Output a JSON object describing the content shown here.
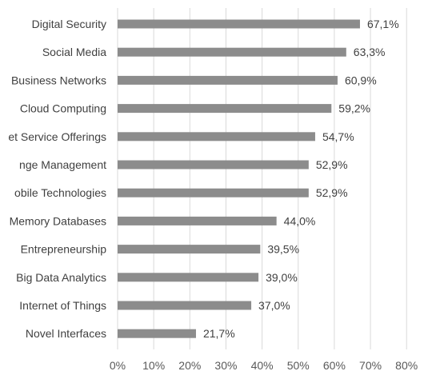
{
  "chart_data": {
    "type": "bar",
    "orientation": "horizontal",
    "categories": [
      "Digital Security",
      "Social Media",
      "Business Networks",
      "Cloud Computing",
      "et Service Offerings",
      "nge Management",
      "obile Technologies",
      "Memory Databases",
      "Entrepreneurship",
      "Big Data Analytics",
      "Internet of Things",
      "Novel Interfaces"
    ],
    "values": [
      67.1,
      63.3,
      60.9,
      59.2,
      54.7,
      52.9,
      52.9,
      44.0,
      39.5,
      39.0,
      37.0,
      21.7
    ],
    "value_labels": [
      "67,1%",
      "63,3%",
      "60,9%",
      "59,2%",
      "54,7%",
      "52,9%",
      "52,9%",
      "44,0%",
      "39,5%",
      "39,0%",
      "37,0%",
      "21,7%"
    ],
    "xlim": [
      0,
      80
    ],
    "xticks": [
      0,
      10,
      20,
      30,
      40,
      50,
      60,
      70,
      80
    ],
    "xtick_labels": [
      "0%",
      "10%",
      "20%",
      "30%",
      "40%",
      "50%",
      "60%",
      "70%",
      "80%"
    ],
    "grid": true,
    "legend": false,
    "title": "",
    "xlabel": "",
    "ylabel": "",
    "colors": {
      "bar": "#8c8c8c",
      "grid": "#d9d9d9",
      "text": "#404040",
      "value_text": "#404040",
      "tick_text": "#595959"
    }
  }
}
